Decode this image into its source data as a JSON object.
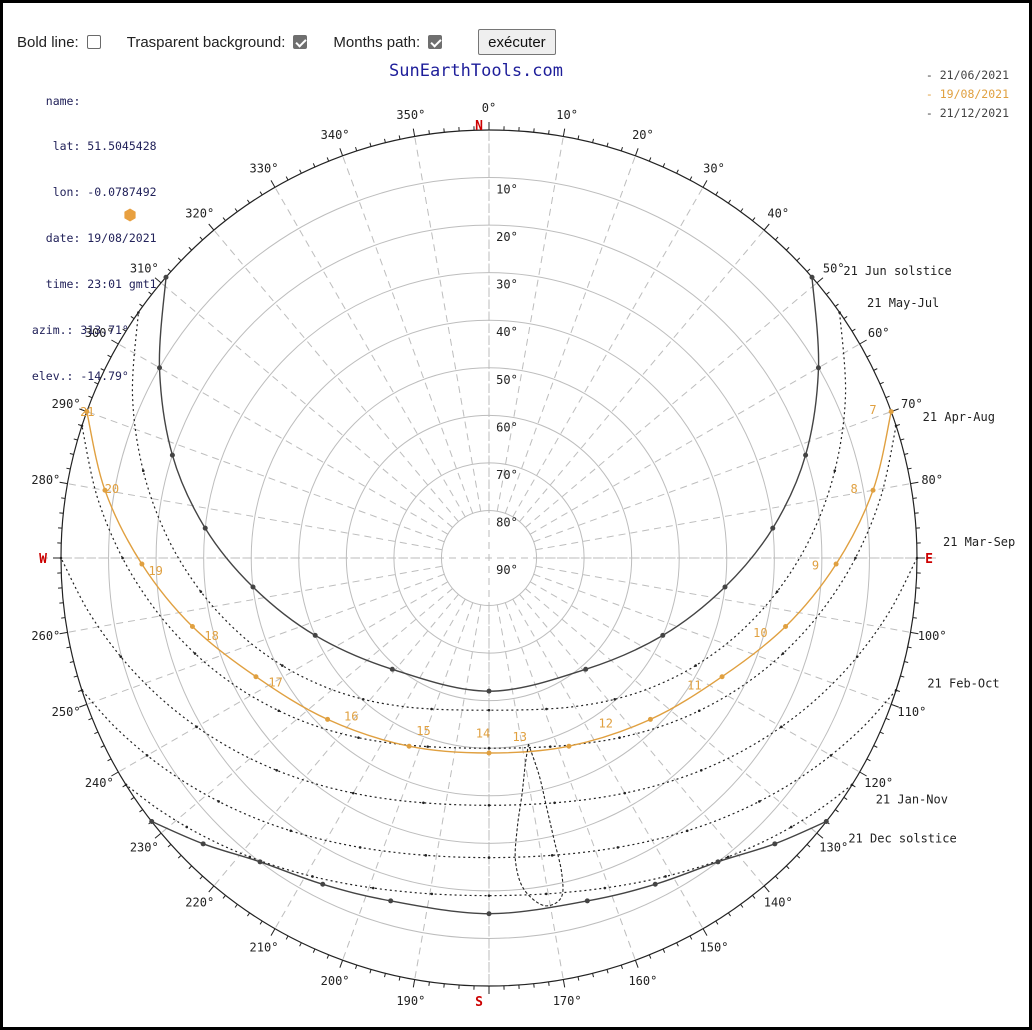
{
  "toolbar": {
    "bold_line_label": "Bold line:",
    "bold_line_checked": false,
    "transparent_label": "Trasparent background:",
    "transparent_checked": true,
    "months_path_label": "Months path:",
    "months_path_checked": true,
    "run_label": "exécuter"
  },
  "site_title": "SunEarthTools.com",
  "info": {
    "name_line": "   name:",
    "lat_line": "    lat: 51.5045428",
    "lon_line": "    lon: -0.0787492",
    "date_line": "   date: 19/08/2021",
    "time_line": "   time: 23:01 gmt1",
    "azim_line": " azim.: 313.71°",
    "elev_line": " elev.: -14.79°"
  },
  "colors": {
    "sun_path_current": "#e0a040",
    "sun_path_other": "#444444",
    "grid": "#bdbdbd",
    "direction": "#cc0000",
    "sun_marker": "#e8a040",
    "title": "#1e1e9a"
  },
  "sun_marker_icon": "sun-position-marker",
  "chart_data": {
    "type": "polar-sun-path",
    "directions": {
      "north": "N",
      "east": "E",
      "south": "S",
      "west": "W"
    },
    "azimuth_ticks": [
      "0°",
      "10°",
      "20°",
      "30°",
      "40°",
      "50°",
      "60°",
      "70°",
      "80°",
      "100°",
      "110°",
      "120°",
      "130°",
      "140°",
      "150°",
      "160°",
      "170°",
      "190°",
      "200°",
      "210°",
      "220°",
      "230°",
      "240°",
      "250°",
      "260°",
      "280°",
      "290°",
      "300°",
      "310°",
      "320°",
      "330°",
      "340°",
      "350°"
    ],
    "azimuth_values": [
      0,
      10,
      20,
      30,
      40,
      50,
      60,
      70,
      80,
      100,
      110,
      120,
      130,
      140,
      150,
      160,
      170,
      190,
      200,
      210,
      220,
      230,
      240,
      250,
      260,
      280,
      290,
      300,
      310,
      320,
      330,
      340,
      350
    ],
    "elevation_ticks": [
      "10°",
      "20°",
      "30°",
      "40°",
      "50°",
      "60°",
      "70°",
      "80°",
      "90°"
    ],
    "elevation_values": [
      10,
      20,
      30,
      40,
      50,
      60,
      70,
      80,
      90
    ],
    "legend": [
      {
        "label": "- 21/06/2021",
        "color": "#444444"
      },
      {
        "label": "- 19/08/2021",
        "color": "#e0a040"
      },
      {
        "label": "- 21/12/2021",
        "color": "#444444"
      }
    ],
    "day_paths": [
      {
        "date": "21/06/2021",
        "style": "solid",
        "color": "#444444",
        "points": [
          [
            49,
            0
          ],
          [
            60,
            10
          ],
          [
            72,
            20
          ],
          [
            84,
            30
          ],
          [
            97,
            40
          ],
          [
            114,
            50
          ],
          [
            139,
            59
          ],
          [
            180,
            62
          ],
          [
            221,
            59
          ],
          [
            246,
            50
          ],
          [
            263,
            40
          ],
          [
            276,
            30
          ],
          [
            288,
            20
          ],
          [
            300,
            10
          ],
          [
            311,
            0
          ]
        ]
      },
      {
        "date": "19/08/2021",
        "style": "solid",
        "color": "#e0a040",
        "points": [
          [
            70,
            0
          ],
          [
            80,
            8
          ],
          [
            91,
            17
          ],
          [
            103,
            26
          ],
          [
            117,
            35
          ],
          [
            135,
            42
          ],
          [
            157,
            47
          ],
          [
            180,
            49
          ],
          [
            203,
            47
          ],
          [
            225,
            42
          ],
          [
            243,
            35
          ],
          [
            257,
            26
          ],
          [
            269,
            17
          ],
          [
            280,
            8
          ],
          [
            290,
            0
          ]
        ]
      },
      {
        "date": "21/12/2021",
        "style": "solid",
        "color": "#444444",
        "points": [
          [
            128,
            0
          ],
          [
            135,
            5
          ],
          [
            143,
            10
          ],
          [
            153,
            13
          ],
          [
            164,
            15
          ],
          [
            180,
            15.2
          ],
          [
            196,
            15
          ],
          [
            207,
            13
          ],
          [
            217,
            10
          ],
          [
            225,
            5
          ],
          [
            232,
            0
          ]
        ]
      }
    ],
    "month_paths": [
      {
        "label": "21 May-Jul",
        "style": "dotted",
        "az_rise": 55,
        "max_elev": 58
      },
      {
        "label": "21 Apr-Aug",
        "style": "dotted",
        "az_rise": 72,
        "max_elev": 50
      },
      {
        "label": "21 Mar-Sep",
        "style": "dotted",
        "az_rise": 90,
        "max_elev": 38
      },
      {
        "label": "21 Feb-Oct",
        "style": "dotted",
        "az_rise": 108,
        "max_elev": 27
      },
      {
        "label": "21 Jan-Nov",
        "style": "dotted",
        "az_rise": 122,
        "max_elev": 19
      }
    ],
    "solstice_labels": {
      "summer": "21 Jun  solstice",
      "winter": "21 Dec  solstice"
    },
    "hour_labels": [
      {
        "text": "7",
        "az": 70.5,
        "el": 3
      },
      {
        "text": "8",
        "az": 81,
        "el": 11
      },
      {
        "text": "9",
        "az": 93,
        "el": 20
      },
      {
        "text": "10",
        "az": 107,
        "el": 29
      },
      {
        "text": "11",
        "az": 123,
        "el": 37
      },
      {
        "text": "12",
        "az": 145,
        "el": 45
      },
      {
        "text": "13",
        "az": 169,
        "el": 49.5
      },
      {
        "text": "14",
        "az": 180,
        "el": 51
      },
      {
        "text": "15",
        "az": 198,
        "el": 49.5
      },
      {
        "text": "16",
        "az": 218,
        "el": 45
      },
      {
        "text": "17",
        "az": 237,
        "el": 38
      },
      {
        "text": "18",
        "az": 252,
        "el": 30
      },
      {
        "text": "19",
        "az": 266,
        "el": 21
      },
      {
        "text": "20",
        "az": 279,
        "el": 11
      },
      {
        "text": "21",
        "az": 289,
        "el": 2
      }
    ],
    "analemma": [
      [
        168,
        50
      ],
      [
        170,
        46
      ],
      [
        172,
        40
      ],
      [
        174,
        33
      ],
      [
        175,
        26
      ],
      [
        174,
        20
      ],
      [
        171,
        16
      ],
      [
        168,
        17
      ],
      [
        167,
        22
      ],
      [
        167,
        29
      ],
      [
        167,
        36
      ],
      [
        167,
        43
      ],
      [
        168,
        50
      ]
    ]
  }
}
